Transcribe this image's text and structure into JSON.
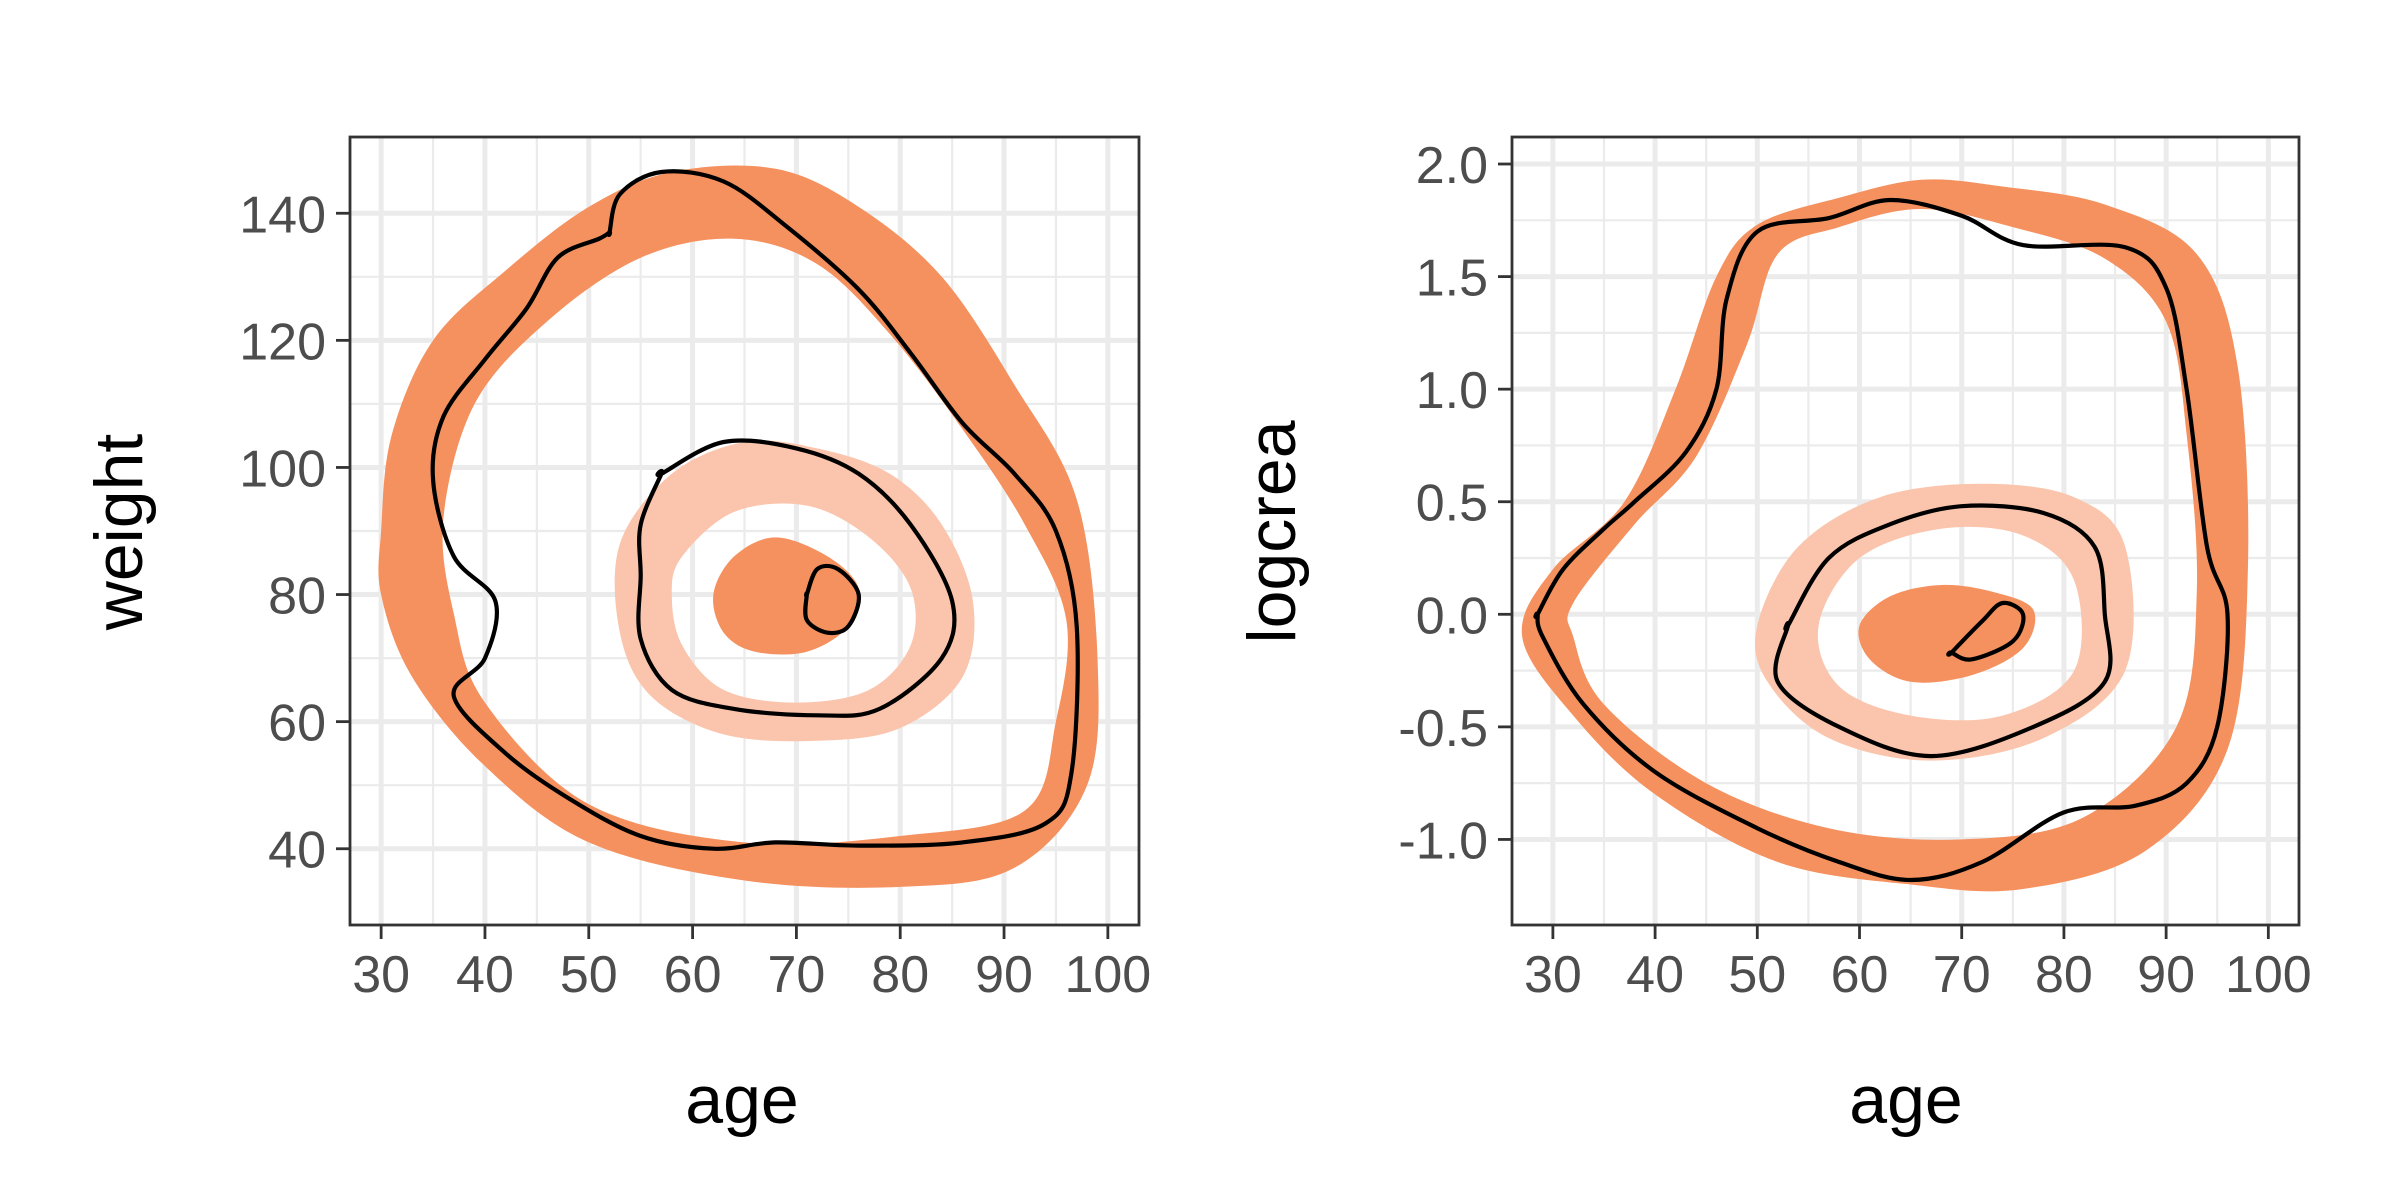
{
  "chart_data": [
    {
      "type": "contour",
      "xlabel": "age",
      "ylabel": "weight",
      "xlim": [
        27,
        103
      ],
      "ylim": [
        28,
        152
      ],
      "xticks": [
        30,
        40,
        50,
        60,
        70,
        80,
        90,
        100
      ],
      "yticks": [
        40,
        60,
        80,
        100,
        120,
        140
      ],
      "grid": true,
      "bands": [
        {
          "level": "outer",
          "color": "#f4915f",
          "outer": [
            [
              30,
              90
            ],
            [
              31,
              105
            ],
            [
              35,
              120
            ],
            [
              42,
              131
            ],
            [
              50,
              141
            ],
            [
              58,
              146.5
            ],
            [
              68,
              147
            ],
            [
              76,
              141
            ],
            [
              84,
              130
            ],
            [
              91,
              113
            ],
            [
              97,
              95
            ],
            [
              99,
              70
            ],
            [
              98,
              50
            ],
            [
              91,
              37
            ],
            [
              80,
              34
            ],
            [
              65,
              35
            ],
            [
              50,
              41
            ],
            [
              40,
              53
            ],
            [
              33,
              67
            ],
            [
              30,
              80
            ]
          ],
          "inner": [
            [
              36,
              92
            ],
            [
              39,
              110
            ],
            [
              46,
              123
            ],
            [
              55,
              133
            ],
            [
              64,
              136
            ],
            [
              72,
              132
            ],
            [
              79,
              121
            ],
            [
              86,
              106
            ],
            [
              92,
              91
            ],
            [
              96,
              76
            ],
            [
              95,
              60
            ],
            [
              92,
              46
            ],
            [
              80,
              42
            ],
            [
              65,
              41
            ],
            [
              50,
              47
            ],
            [
              40,
              63
            ],
            [
              37,
              77
            ]
          ]
        },
        {
          "level": "middle",
          "color": "#fac5ac",
          "outer": [
            [
              53,
              88
            ],
            [
              58,
              99
            ],
            [
              65,
              104
            ],
            [
              72,
              103
            ],
            [
              79,
              99
            ],
            [
              84,
              91
            ],
            [
              87,
              79
            ],
            [
              86,
              67
            ],
            [
              80,
              59
            ],
            [
              72,
              57
            ],
            [
              63,
              58
            ],
            [
              56,
              64
            ],
            [
              53,
              74
            ]
          ],
          "inner": [
            [
              59,
              86
            ],
            [
              64,
              93
            ],
            [
              71,
              94
            ],
            [
              77,
              89
            ],
            [
              81,
              81
            ],
            [
              81,
              72
            ],
            [
              77,
              65
            ],
            [
              70,
              63
            ],
            [
              63,
              65
            ],
            [
              59,
              72
            ],
            [
              58,
              80
            ]
          ]
        },
        {
          "level": "inner",
          "color": "#f4915f",
          "outer": [
            [
              62,
              80
            ],
            [
              64,
              86
            ],
            [
              68,
              89
            ],
            [
              73,
              86
            ],
            [
              76,
              81
            ],
            [
              75,
              75
            ],
            [
              71,
              71
            ],
            [
              66,
              71
            ],
            [
              63,
              74
            ]
          ],
          "inner": []
        }
      ],
      "lines": [
        [
          [
            52,
            137
          ],
          [
            53,
            143
          ],
          [
            57,
            146.5
          ],
          [
            63,
            145
          ],
          [
            69,
            138
          ],
          [
            76,
            128
          ],
          [
            81,
            118
          ],
          [
            86,
            107
          ],
          [
            91,
            99
          ],
          [
            95,
            90
          ],
          [
            97,
            75
          ],
          [
            96.5,
            52
          ],
          [
            94,
            44
          ],
          [
            86,
            41
          ],
          [
            76,
            40.5
          ],
          [
            68,
            41
          ],
          [
            62,
            40
          ],
          [
            55,
            42
          ],
          [
            48,
            48
          ],
          [
            42,
            55
          ],
          [
            37,
            64
          ],
          [
            40,
            70
          ],
          [
            41,
            79
          ],
          [
            37,
            86
          ],
          [
            35,
            98
          ],
          [
            36,
            108
          ],
          [
            40,
            117
          ],
          [
            44,
            125
          ],
          [
            47,
            133
          ],
          [
            51,
            136
          ],
          [
            52,
            137
          ]
        ],
        [
          [
            57,
            99
          ],
          [
            63,
            104
          ],
          [
            70,
            103
          ],
          [
            76,
            99
          ],
          [
            81,
            91
          ],
          [
            85,
            79
          ],
          [
            84,
            70
          ],
          [
            78,
            62
          ],
          [
            72,
            61
          ],
          [
            64,
            62
          ],
          [
            58,
            65
          ],
          [
            55,
            73
          ],
          [
            55,
            83
          ],
          [
            55,
            91
          ],
          [
            57,
            99
          ]
        ],
        [
          [
            71,
            80
          ],
          [
            72,
            84
          ],
          [
            74,
            84
          ],
          [
            76,
            80
          ],
          [
            75,
            75
          ],
          [
            73,
            74
          ],
          [
            71,
            76
          ],
          [
            71,
            80
          ]
        ]
      ]
    },
    {
      "type": "contour",
      "xlabel": "age",
      "ylabel": "logcrea",
      "xlim": [
        26,
        103
      ],
      "ylim": [
        -1.38,
        2.12
      ],
      "xticks": [
        30,
        40,
        50,
        60,
        70,
        80,
        90,
        100
      ],
      "yticks": [
        -1.0,
        -0.5,
        0.0,
        0.5,
        1.0,
        1.5,
        2.0
      ],
      "yticklabels": [
        "-1.0",
        "-0.5",
        "0.0",
        "0.5",
        "1.0",
        "1.5",
        "2.0"
      ],
      "grid": true,
      "bands": [
        {
          "level": "outer",
          "color": "#f4915f",
          "outer": [
            [
              27,
              -0.1
            ],
            [
              30,
              0.2
            ],
            [
              37,
              0.5
            ],
            [
              42,
              1.0
            ],
            [
              46,
              1.5
            ],
            [
              50,
              1.73
            ],
            [
              58,
              1.85
            ],
            [
              66,
              1.93
            ],
            [
              74,
              1.9
            ],
            [
              84,
              1.82
            ],
            [
              93,
              1.6
            ],
            [
              97,
              1.1
            ],
            [
              98,
              0.2
            ],
            [
              96,
              -0.6
            ],
            [
              88,
              -1.05
            ],
            [
              76,
              -1.22
            ],
            [
              65,
              -1.2
            ],
            [
              52,
              -1.1
            ],
            [
              40,
              -0.8
            ],
            [
              32,
              -0.45
            ]
          ],
          "inner": [
            [
              32,
              0.05
            ],
            [
              38,
              0.4
            ],
            [
              44,
              0.7
            ],
            [
              49,
              1.2
            ],
            [
              52,
              1.6
            ],
            [
              58,
              1.72
            ],
            [
              66,
              1.8
            ],
            [
              75,
              1.72
            ],
            [
              84,
              1.58
            ],
            [
              90,
              1.3
            ],
            [
              92,
              0.8
            ],
            [
              93,
              0.1
            ],
            [
              91,
              -0.5
            ],
            [
              82,
              -0.9
            ],
            [
              70,
              -1.0
            ],
            [
              57,
              -0.95
            ],
            [
              45,
              -0.75
            ],
            [
              35,
              -0.4
            ],
            [
              32,
              -0.1
            ]
          ]
        },
        {
          "level": "middle",
          "color": "#fac5ac",
          "outer": [
            [
              50,
              -0.05
            ],
            [
              54,
              0.3
            ],
            [
              62,
              0.52
            ],
            [
              72,
              0.58
            ],
            [
              81,
              0.52
            ],
            [
              86,
              0.3
            ],
            [
              86,
              -0.25
            ],
            [
              78,
              -0.55
            ],
            [
              67,
              -0.65
            ],
            [
              57,
              -0.55
            ],
            [
              51,
              -0.3
            ]
          ],
          "inner": [
            [
              56,
              -0.05
            ],
            [
              60,
              0.25
            ],
            [
              68,
              0.38
            ],
            [
              76,
              0.35
            ],
            [
              81,
              0.15
            ],
            [
              81,
              -0.25
            ],
            [
              74,
              -0.45
            ],
            [
              65,
              -0.45
            ],
            [
              58,
              -0.32
            ]
          ]
        },
        {
          "level": "inner",
          "color": "#f4915f",
          "outer": [
            [
              60,
              -0.05
            ],
            [
              63,
              0.08
            ],
            [
              68,
              0.13
            ],
            [
              73,
              0.1
            ],
            [
              77,
              0.02
            ],
            [
              76,
              -0.15
            ],
            [
              71,
              -0.27
            ],
            [
              65,
              -0.3
            ],
            [
              61,
              -0.2
            ]
          ],
          "inner": []
        }
      ],
      "lines": [
        [
          [
            28.5,
            0.0
          ],
          [
            31,
            0.2
          ],
          [
            35,
            0.38
          ],
          [
            38,
            0.5
          ],
          [
            43,
            0.72
          ],
          [
            46,
            1.0
          ],
          [
            47,
            1.4
          ],
          [
            50,
            1.7
          ],
          [
            57,
            1.76
          ],
          [
            63,
            1.84
          ],
          [
            70,
            1.77
          ],
          [
            76,
            1.64
          ],
          [
            86,
            1.63
          ],
          [
            90,
            1.45
          ],
          [
            92,
            1.0
          ],
          [
            94,
            0.3
          ],
          [
            96,
            0.0
          ],
          [
            95,
            -0.5
          ],
          [
            92,
            -0.75
          ],
          [
            87,
            -0.85
          ],
          [
            80,
            -0.88
          ],
          [
            72,
            -1.1
          ],
          [
            65,
            -1.18
          ],
          [
            58,
            -1.1
          ],
          [
            50,
            -0.95
          ],
          [
            40,
            -0.7
          ],
          [
            33,
            -0.4
          ],
          [
            29,
            -0.1
          ],
          [
            28.5,
            0.0
          ]
        ],
        [
          [
            53,
            -0.05
          ],
          [
            57,
            0.25
          ],
          [
            63,
            0.4
          ],
          [
            70,
            0.48
          ],
          [
            78,
            0.45
          ],
          [
            83,
            0.3
          ],
          [
            84,
            0.0
          ],
          [
            84,
            -0.3
          ],
          [
            77,
            -0.5
          ],
          [
            67,
            -0.63
          ],
          [
            58,
            -0.5
          ],
          [
            52,
            -0.3
          ],
          [
            53,
            -0.05
          ]
        ],
        [
          [
            69,
            -0.17
          ],
          [
            72,
            -0.03
          ],
          [
            74,
            0.05
          ],
          [
            76,
            0.0
          ],
          [
            75,
            -0.12
          ],
          [
            71,
            -0.2
          ],
          [
            69,
            -0.17
          ]
        ]
      ]
    }
  ]
}
